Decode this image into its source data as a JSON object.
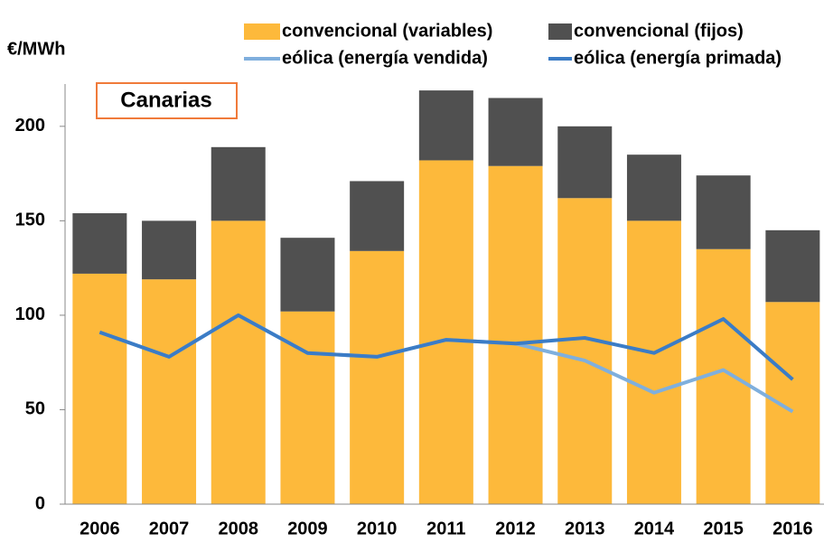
{
  "chart_data": {
    "type": "bar",
    "title": "Canarias",
    "y_label": "€/MWh",
    "categories": [
      "2006",
      "2007",
      "2008",
      "2009",
      "2010",
      "2011",
      "2012",
      "2013",
      "2014",
      "2015",
      "2016"
    ],
    "series": [
      {
        "name": "convencional (variables)",
        "type": "bar",
        "color": "#fdb93b",
        "values": [
          122,
          119,
          150,
          102,
          134,
          182,
          179,
          162,
          150,
          135,
          107
        ]
      },
      {
        "name": "convencional (fijos)",
        "type": "bar",
        "color": "#505050",
        "values": [
          32,
          31,
          39,
          39,
          37,
          37,
          36,
          38,
          35,
          39,
          38
        ]
      },
      {
        "name": "eólica (energía vendida)",
        "type": "line",
        "color": "#7fafdd",
        "values": [
          91,
          78,
          100,
          80,
          78,
          87,
          85,
          76,
          59,
          71,
          49
        ]
      },
      {
        "name": "eólica (energía primada)",
        "type": "line",
        "color": "#3b7cc6",
        "values": [
          91,
          78,
          100,
          80,
          78,
          87,
          85,
          88,
          80,
          98,
          66
        ]
      }
    ],
    "ylim": [
      0,
      220
    ],
    "yticks": [
      0,
      50,
      100,
      150,
      200
    ]
  }
}
